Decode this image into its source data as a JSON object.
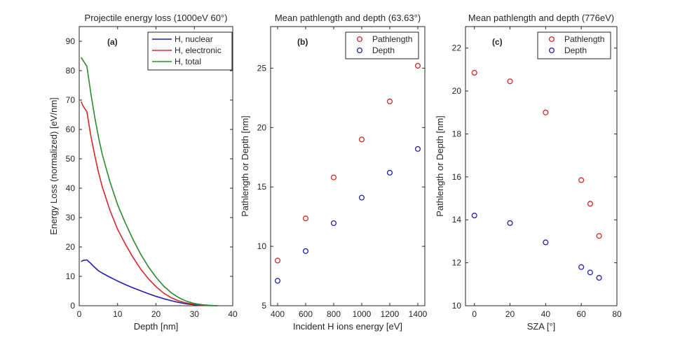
{
  "chart_data": [
    {
      "id": "a",
      "type": "line",
      "panel_label": "(a)",
      "title": "Projectile energy loss (1000eV 60°)",
      "xlabel": "Depth [nm]",
      "ylabel": "Energy Loss (normalized) [eV/nm]",
      "xlim": [
        0,
        40
      ],
      "ylim": [
        0,
        95
      ],
      "xticks": [
        0,
        10,
        20,
        30,
        40
      ],
      "yticks": [
        0,
        10,
        20,
        30,
        40,
        50,
        60,
        70,
        80,
        90
      ],
      "legend_position": "top-right",
      "series": [
        {
          "name": "H, nuclear",
          "color": "#1f1fb4",
          "x": [
            0.5,
            1,
            2,
            3,
            4,
            5,
            6,
            8,
            10,
            12,
            14,
            16,
            18,
            20,
            22,
            24,
            26,
            28,
            30,
            32,
            34,
            36
          ],
          "y": [
            15.0,
            15.4,
            15.6,
            14.4,
            13.1,
            11.9,
            11.1,
            9.7,
            8.4,
            7.2,
            6.1,
            5.1,
            4.1,
            3.2,
            2.4,
            1.7,
            1.1,
            0.6,
            0.3,
            0.15,
            0.05,
            0
          ]
        },
        {
          "name": "H, electronic",
          "color": "#d62728",
          "x": [
            0.5,
            1,
            2,
            3,
            4,
            5,
            6,
            8,
            10,
            12,
            14,
            16,
            18,
            20,
            22,
            24,
            26,
            28,
            30,
            32,
            34,
            36
          ],
          "y": [
            69.5,
            68,
            66,
            58,
            51.5,
            45.5,
            40.5,
            32.5,
            26,
            21,
            16.5,
            12.5,
            9.2,
            6.5,
            4.3,
            2.7,
            1.6,
            0.9,
            0.45,
            0.2,
            0.08,
            0
          ]
        },
        {
          "name": "H, total",
          "color": "#2a8a2a",
          "x": [
            0.5,
            1,
            2,
            3,
            4,
            5,
            6,
            8,
            10,
            12,
            14,
            16,
            18,
            20,
            22,
            24,
            26,
            28,
            30,
            32,
            34,
            36
          ],
          "y": [
            84.5,
            83.5,
            81.5,
            72.5,
            64.5,
            57.5,
            51.5,
            42.2,
            34.4,
            28.2,
            22.6,
            17.6,
            13.3,
            9.7,
            6.7,
            4.4,
            2.7,
            1.5,
            0.75,
            0.35,
            0.13,
            0
          ]
        }
      ]
    },
    {
      "id": "b",
      "type": "scatter",
      "panel_label": "(b)",
      "title": "Mean pathlength and depth (63.63°)",
      "xlabel": "Incident H ions energy [eV]",
      "ylabel": "Pathlength or Depth [nm]",
      "xlim": [
        350,
        1450
      ],
      "ylim": [
        5,
        28.5
      ],
      "xticks": [
        400,
        600,
        800,
        1000,
        1200,
        1400
      ],
      "yticks": [
        5,
        10,
        15,
        20,
        25
      ],
      "legend_position": "top-right",
      "series": [
        {
          "name": "Pathlength",
          "color": "#d62728",
          "x": [
            400,
            600,
            800,
            1000,
            1200,
            1400
          ],
          "y": [
            8.8,
            12.35,
            15.8,
            19.0,
            22.2,
            25.2
          ]
        },
        {
          "name": "Depth",
          "color": "#1f1fb4",
          "x": [
            400,
            600,
            800,
            1000,
            1200,
            1400
          ],
          "y": [
            7.1,
            9.6,
            11.95,
            14.1,
            16.2,
            18.2
          ]
        }
      ]
    },
    {
      "id": "c",
      "type": "scatter",
      "panel_label": "(c)",
      "title": "Mean pathlength and depth (776eV)",
      "xlabel": "SZA [°]",
      "ylabel": "Pathlength or Depth [nm]",
      "xlim": [
        -5,
        80
      ],
      "ylim": [
        10,
        23
      ],
      "xticks": [
        0,
        20,
        40,
        60,
        80
      ],
      "yticks": [
        10,
        12,
        14,
        16,
        18,
        20,
        22
      ],
      "legend_position": "top-right",
      "series": [
        {
          "name": "Pathlength",
          "color": "#d62728",
          "x": [
            0,
            20,
            40,
            60,
            65,
            70
          ],
          "y": [
            20.85,
            20.45,
            19.0,
            15.85,
            14.75,
            13.25
          ]
        },
        {
          "name": "Depth",
          "color": "#1f1fb4",
          "x": [
            0,
            20,
            40,
            60,
            65,
            70
          ],
          "y": [
            14.2,
            13.85,
            12.95,
            11.8,
            11.55,
            11.3
          ]
        }
      ]
    }
  ]
}
